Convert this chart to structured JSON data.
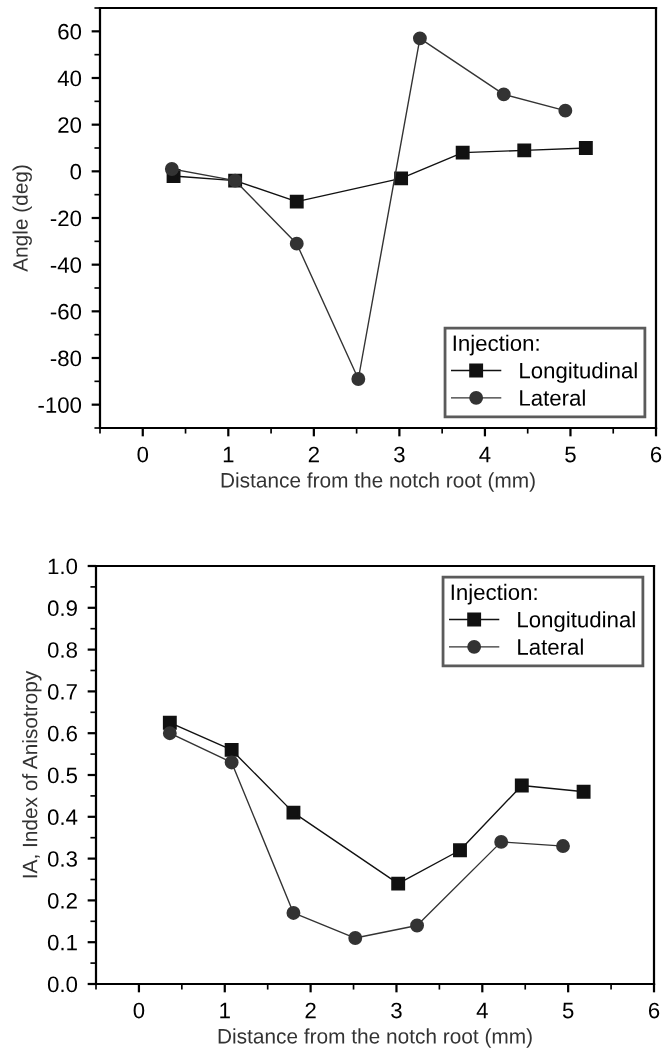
{
  "chart_data": [
    {
      "type": "line",
      "xlabel": "Distance from the notch root (mm)",
      "ylabel": "Angle (deg)",
      "xlim": [
        -0.5,
        6
      ],
      "xticks": [
        0,
        1,
        2,
        3,
        4,
        5,
        6
      ],
      "ylim": [
        -110,
        70
      ],
      "yticks": [
        -100,
        -80,
        -60,
        -40,
        -20,
        0,
        20,
        40,
        60
      ],
      "legend": "bottom right",
      "legend_title": "Injection:",
      "grid": false,
      "series": [
        {
          "name": "Longitudinal",
          "color": "#111111",
          "marker": "square",
          "x": [
            0.36,
            1.08,
            1.8,
            3.02,
            3.74,
            4.46,
            5.18
          ],
          "values": [
            -2,
            -4,
            -13,
            -3,
            8,
            9,
            10
          ]
        },
        {
          "name": "Lateral",
          "color": "#333333",
          "marker": "circle",
          "x": [
            0.34,
            1.08,
            1.8,
            2.52,
            3.24,
            4.22,
            4.94
          ],
          "values": [
            1,
            -4,
            -31,
            -89,
            57,
            33,
            26
          ]
        }
      ]
    },
    {
      "type": "line",
      "xlabel": "Distance from the notch root (mm)",
      "ylabel": "IA, Index of Anisotropy",
      "xlim": [
        -0.5,
        6
      ],
      "xticks": [
        0,
        1,
        2,
        3,
        4,
        5,
        6
      ],
      "ylim": [
        0,
        1.0
      ],
      "yticks": [
        {
          "value": 0,
          "label": "0.0"
        },
        0.1,
        0.2,
        0.3,
        0.4,
        0.5,
        0.6,
        0.7,
        0.8,
        0.9,
        {
          "value": 1,
          "label": "1.0"
        }
      ],
      "legend": "top right",
      "legend_title": "Injection:",
      "grid": false,
      "series": [
        {
          "name": "Longitudinal",
          "color": "#111111",
          "marker": "square",
          "x": [
            0.36,
            1.08,
            1.8,
            3.02,
            3.74,
            4.46,
            5.18
          ],
          "values": [
            0.625,
            0.56,
            0.41,
            0.24,
            0.32,
            0.475,
            0.46
          ]
        },
        {
          "name": "Lateral",
          "color": "#333333",
          "marker": "circle",
          "x": [
            0.36,
            1.08,
            1.8,
            2.52,
            3.24,
            4.22,
            4.94
          ],
          "values": [
            0.6,
            0.53,
            0.17,
            0.11,
            0.14,
            0.34,
            0.33
          ]
        }
      ]
    }
  ]
}
